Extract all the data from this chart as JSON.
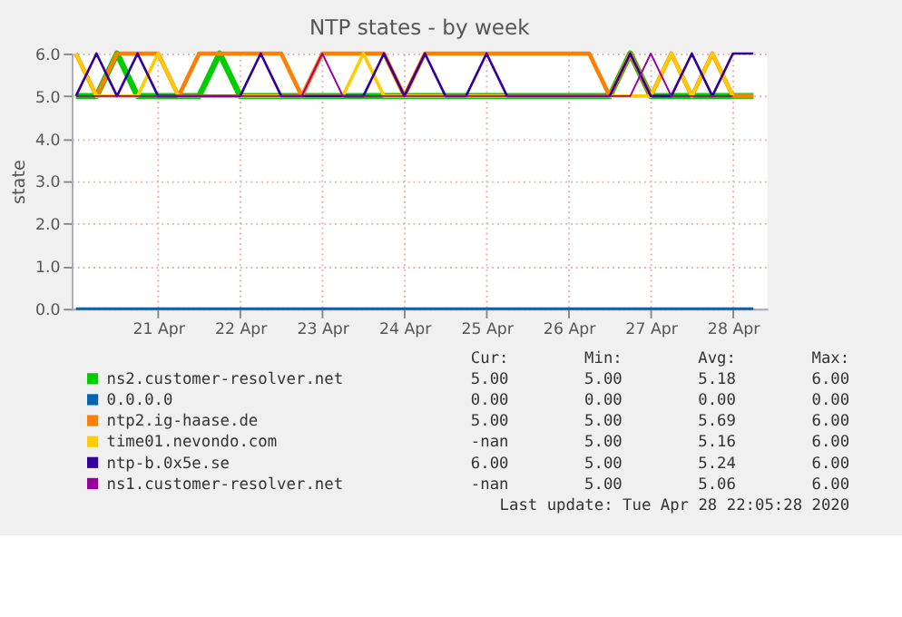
{
  "chart_data": {
    "type": "line",
    "title": "NTP states - by week",
    "ylabel": "state",
    "x": [
      "2020-04-20T12:00",
      "2020-04-20T18:00",
      "2020-04-21T00:00",
      "2020-04-21T06:00",
      "2020-04-21T12:00",
      "2020-04-21T18:00",
      "2020-04-22T00:00",
      "2020-04-22T06:00",
      "2020-04-22T12:00",
      "2020-04-22T18:00",
      "2020-04-23T00:00",
      "2020-04-23T06:00",
      "2020-04-23T12:00",
      "2020-04-23T18:00",
      "2020-04-24T00:00",
      "2020-04-24T06:00",
      "2020-04-24T12:00",
      "2020-04-24T18:00",
      "2020-04-25T00:00",
      "2020-04-25T06:00",
      "2020-04-25T12:00",
      "2020-04-25T18:00",
      "2020-04-26T00:00",
      "2020-04-26T06:00",
      "2020-04-26T12:00",
      "2020-04-26T18:00",
      "2020-04-27T00:00",
      "2020-04-27T06:00",
      "2020-04-27T12:00",
      "2020-04-27T18:00",
      "2020-04-28T00:00",
      "2020-04-28T06:00",
      "2020-04-28T12:00",
      "2020-04-28T18:00"
    ],
    "series": [
      {
        "name": "ns2.customer-resolver.net",
        "color": "#00cc00",
        "values": [
          5,
          5,
          6,
          5,
          5,
          5,
          5,
          6,
          5,
          5,
          5,
          5,
          5,
          5,
          5,
          5,
          5,
          5,
          5,
          5,
          5,
          5,
          5,
          5,
          5,
          5,
          5,
          6,
          5,
          5,
          5,
          5,
          5,
          5
        ]
      },
      {
        "name": "0.0.0.0",
        "color": "#0066b3",
        "values": [
          0,
          0,
          0,
          0,
          0,
          0,
          0,
          0,
          0,
          0,
          0,
          0,
          0,
          0,
          0,
          0,
          0,
          0,
          0,
          0,
          0,
          0,
          0,
          0,
          0,
          0,
          0,
          0,
          0,
          0,
          0,
          0,
          0,
          0
        ]
      },
      {
        "name": "ntp2.ig-haase.de",
        "color": "#ff8000",
        "values": [
          6,
          5,
          6,
          6,
          6,
          5,
          6,
          6,
          6,
          6,
          6,
          5,
          6,
          6,
          6,
          6,
          5,
          6,
          6,
          6,
          6,
          6,
          6,
          6,
          6,
          6,
          5,
          6,
          5,
          6,
          5,
          6,
          5,
          5
        ]
      },
      {
        "name": "time01.nevondo.com",
        "color": "#ffcc00",
        "values": [
          6,
          5,
          5,
          5,
          6,
          5,
          5,
          5,
          5,
          5,
          5,
          5,
          5,
          5,
          6,
          5,
          5,
          5,
          5,
          5,
          5,
          5,
          5,
          5,
          5,
          5,
          5,
          5,
          5,
          6,
          5,
          6,
          5,
          null
        ]
      },
      {
        "name": "ntp-b.0x5e.se",
        "color": "#330099",
        "values": [
          5,
          6,
          5,
          6,
          5,
          5,
          5,
          5,
          5,
          6,
          5,
          5,
          5,
          5,
          5,
          6,
          5,
          6,
          5,
          5,
          6,
          5,
          5,
          5,
          5,
          5,
          5,
          6,
          5,
          5,
          6,
          5,
          6,
          6
        ]
      },
      {
        "name": "ns1.customer-resolver.net",
        "color": "#990099",
        "values": [
          5,
          5,
          5,
          5,
          5,
          5,
          5,
          5,
          5,
          5,
          5,
          5,
          6,
          5,
          5,
          5,
          5,
          5,
          5,
          5,
          5,
          5,
          5,
          5,
          5,
          5,
          5,
          5,
          6,
          5,
          5,
          5,
          5,
          null
        ]
      }
    ],
    "xlim": [
      "2020-04-20T10:45",
      "2020-04-28T22:05"
    ],
    "xticks": [
      {
        "value": "2020-04-21T12:00",
        "label": "21 Apr"
      },
      {
        "value": "2020-04-22T12:00",
        "label": "22 Apr"
      },
      {
        "value": "2020-04-23T12:00",
        "label": "23 Apr"
      },
      {
        "value": "2020-04-24T12:00",
        "label": "24 Apr"
      },
      {
        "value": "2020-04-25T12:00",
        "label": "25 Apr"
      },
      {
        "value": "2020-04-26T12:00",
        "label": "26 Apr"
      },
      {
        "value": "2020-04-27T12:00",
        "label": "27 Apr"
      },
      {
        "value": "2020-04-28T12:00",
        "label": "28 Apr"
      }
    ],
    "ylim": [
      0,
      6
    ],
    "yticks": [
      {
        "value": 0,
        "label": "0.0"
      },
      {
        "value": 1,
        "label": "1.0"
      },
      {
        "value": 2,
        "label": "2.0"
      },
      {
        "value": 3,
        "label": "3.0"
      },
      {
        "value": 4,
        "label": "4.0"
      },
      {
        "value": 5,
        "label": "5.0"
      },
      {
        "value": 6,
        "label": "6.0"
      }
    ],
    "grid": true,
    "legend": "bottom",
    "marker": "none",
    "line_style": "solid",
    "annotations": [
      "Cur:",
      "Min:",
      "Avg:",
      "Max:",
      "5.00",
      "5.00",
      "5.18",
      "6.00",
      "0.00",
      "0.00",
      "0.00",
      "0.00",
      "5.00",
      "5.00",
      "5.69",
      "6.00",
      "-nan",
      "5.00",
      "5.16",
      "6.00",
      "6.00",
      "5.00",
      "5.24",
      "6.00",
      "-nan",
      "5.00",
      "5.06",
      "6.00",
      "Last update: Tue Apr 28 22:05:28 2020"
    ]
  }
}
